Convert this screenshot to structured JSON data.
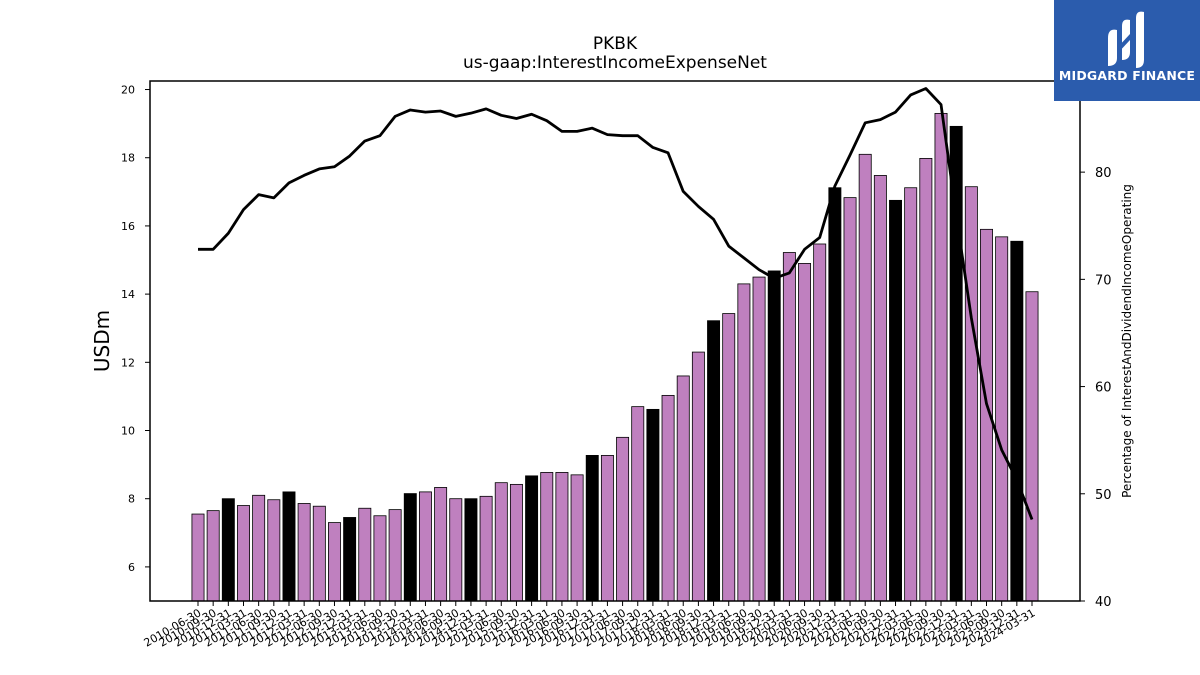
{
  "chart_data": {
    "type": "bar+line",
    "title": "PKBK",
    "subtitle": "us-gaap:InterestIncomeExpenseNet",
    "ylabel_left": "USDm",
    "ylabel_right": "Percentage of InterestAndDividendIncomeOperating",
    "ylim_left": [
      5,
      20.25
    ],
    "ylim_right": [
      40,
      88.5
    ],
    "yticks_left": [
      6,
      8,
      10,
      12,
      14,
      16,
      18,
      20
    ],
    "yticks_right": [
      40,
      50,
      60,
      70,
      80
    ],
    "categories": [
      "2010-06-30",
      "2010-09-30",
      "2010-12-31",
      "2011-03-31",
      "2011-06-30",
      "2011-09-30",
      "2011-12-31",
      "2012-03-31",
      "2012-06-30",
      "2012-09-30",
      "2012-12-31",
      "2013-03-31",
      "2013-06-30",
      "2013-09-30",
      "2013-12-31",
      "2014-03-31",
      "2014-06-30",
      "2014-09-30",
      "2014-12-31",
      "2015-03-31",
      "2015-06-30",
      "2015-09-30",
      "2015-12-31",
      "2016-03-31",
      "2016-06-30",
      "2016-09-30",
      "2016-12-31",
      "2017-03-31",
      "2017-06-30",
      "2017-09-30",
      "2017-12-31",
      "2018-03-31",
      "2018-06-30",
      "2018-09-30",
      "2018-12-31",
      "2019-03-31",
      "2019-06-30",
      "2019-09-30",
      "2019-12-31",
      "2020-03-31",
      "2020-06-30",
      "2020-09-30",
      "2020-12-31",
      "2021-03-31",
      "2021-06-30",
      "2021-09-30",
      "2021-12-31",
      "2022-03-31",
      "2022-06-30",
      "2022-09-30",
      "2022-12-31",
      "2023-03-31",
      "2023-06-30",
      "2023-09-30",
      "2023-12-31",
      "2024-03-31"
    ],
    "series": [
      {
        "values": [
          7.55,
          7.65,
          8.0,
          7.8,
          8.1,
          7.97,
          8.2,
          7.86,
          7.78,
          7.3,
          7.45,
          7.72,
          7.5,
          7.68,
          8.15,
          8.2,
          8.33,
          8.0,
          8.0,
          8.07,
          8.47,
          8.42,
          8.67,
          8.77,
          8.77,
          8.7,
          9.27,
          9.27,
          9.8,
          10.7,
          10.62,
          11.03,
          11.6,
          12.3,
          13.22,
          13.43,
          14.3,
          14.5,
          14.68,
          15.22,
          14.9,
          15.47,
          17.12,
          16.83,
          18.1,
          17.48,
          16.75,
          17.12,
          17.98,
          19.3,
          18.92,
          17.15,
          15.9,
          15.68,
          15.55,
          14.07
        ],
        "highlight": [
          false,
          false,
          true,
          false,
          false,
          false,
          true,
          false,
          false,
          false,
          true,
          false,
          false,
          false,
          true,
          false,
          false,
          false,
          true,
          false,
          false,
          false,
          true,
          false,
          false,
          false,
          true,
          false,
          false,
          false,
          true,
          false,
          false,
          false,
          true,
          false,
          false,
          false,
          true,
          false,
          false,
          false,
          true,
          false,
          false,
          false,
          true,
          false,
          false,
          false,
          true,
          false,
          false,
          false,
          true,
          false
        ]
      },
      {
        "axis": "right",
        "values": [
          72.8,
          72.8,
          74.3,
          76.5,
          77.9,
          77.6,
          79.0,
          79.7,
          80.3,
          80.5,
          81.5,
          82.9,
          83.4,
          85.2,
          85.8,
          85.6,
          85.7,
          85.2,
          85.5,
          85.9,
          85.3,
          85.0,
          85.4,
          84.8,
          83.8,
          83.8,
          84.1,
          83.5,
          83.4,
          83.4,
          82.3,
          81.8,
          78.2,
          76.8,
          75.6,
          73.1,
          72.0,
          70.9,
          70.1,
          70.6,
          72.8,
          73.9,
          78.7,
          81.6,
          84.6,
          84.9,
          85.6,
          87.2,
          87.8,
          86.3,
          76.0,
          66.4,
          58.4,
          54.1,
          51.3,
          47.6
        ]
      }
    ],
    "colors": {
      "bar": "#bf80bf",
      "bar_highlight": "#000000",
      "line": "#000000",
      "logo_bg": "#2b5cad"
    }
  },
  "logo": {
    "text": "MIDGARD FINANCE",
    "icon": "midgard-m-icon"
  }
}
